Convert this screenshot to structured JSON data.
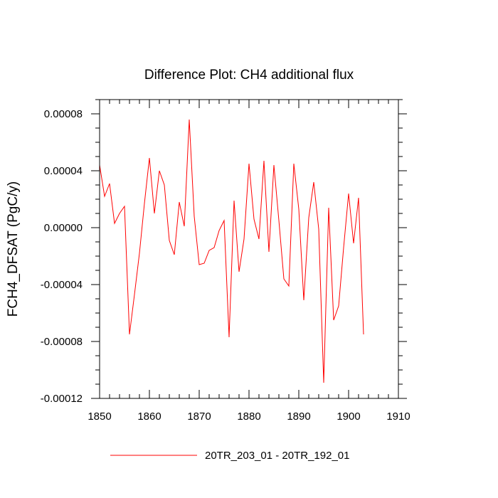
{
  "chart_data": {
    "type": "line",
    "title": "Difference Plot: CH4 additional flux",
    "xlabel": "",
    "ylabel": "FCH4_DFSAT  (PgC/y)",
    "xlim": [
      1850,
      1910
    ],
    "ylim": [
      -0.00012,
      9e-05
    ],
    "x_ticks": [
      1850,
      1860,
      1870,
      1880,
      1890,
      1900,
      1910
    ],
    "x_tick_labels": [
      "1850",
      "1860",
      "1870",
      "1880",
      "1890",
      "1900",
      "1910"
    ],
    "y_ticks": [
      -0.00012,
      -8e-05,
      -4e-05,
      0,
      4e-05,
      8e-05
    ],
    "y_tick_labels": [
      "-0.00012",
      "-0.00008",
      "-0.00004",
      "0.00000",
      "0.00004",
      "0.00008"
    ],
    "grid": false,
    "legend_position": "bottom-center",
    "series": [
      {
        "name": "20TR_203_01 - 20TR_192_01",
        "color": "#ff0000",
        "x": [
          1850,
          1851,
          1852,
          1853,
          1854,
          1855,
          1856,
          1857,
          1858,
          1859,
          1860,
          1861,
          1862,
          1863,
          1864,
          1865,
          1866,
          1867,
          1868,
          1869,
          1870,
          1871,
          1872,
          1873,
          1874,
          1875,
          1876,
          1877,
          1878,
          1879,
          1880,
          1881,
          1882,
          1883,
          1884,
          1885,
          1886,
          1887,
          1888,
          1889,
          1890,
          1891,
          1892,
          1893,
          1894,
          1895,
          1896,
          1897,
          1898,
          1899,
          1900,
          1901,
          1902,
          1903
        ],
        "y": [
          4.4e-05,
          2.2e-05,
          3.1e-05,
          3e-06,
          1e-05,
          1.5e-05,
          -7.5e-05,
          -4.7e-05,
          -1.8e-05,
          1.7e-05,
          4.9e-05,
          1e-05,
          4e-05,
          3e-05,
          -9e-06,
          -1.9e-05,
          1.8e-05,
          1e-06,
          7.6e-05,
          8e-06,
          -2.6e-05,
          -2.5e-05,
          -1.6e-05,
          -1.4e-05,
          -2e-06,
          5e-06,
          -7.7e-05,
          1.9e-05,
          -3.1e-05,
          -8e-06,
          4.5e-05,
          6e-06,
          -8e-06,
          4.7e-05,
          -1.7e-05,
          4.4e-05,
          5e-06,
          -3.6e-05,
          -4.1e-05,
          4.5e-05,
          1.3e-05,
          -5.1e-05,
          7e-06,
          3.2e-05,
          -1e-06,
          -0.000109,
          1.4e-05,
          -6.5e-05,
          -5.5e-05,
          -1.4e-05,
          2.4e-05,
          -1.1e-05,
          2.1e-05,
          -7.5e-05
        ]
      }
    ]
  }
}
